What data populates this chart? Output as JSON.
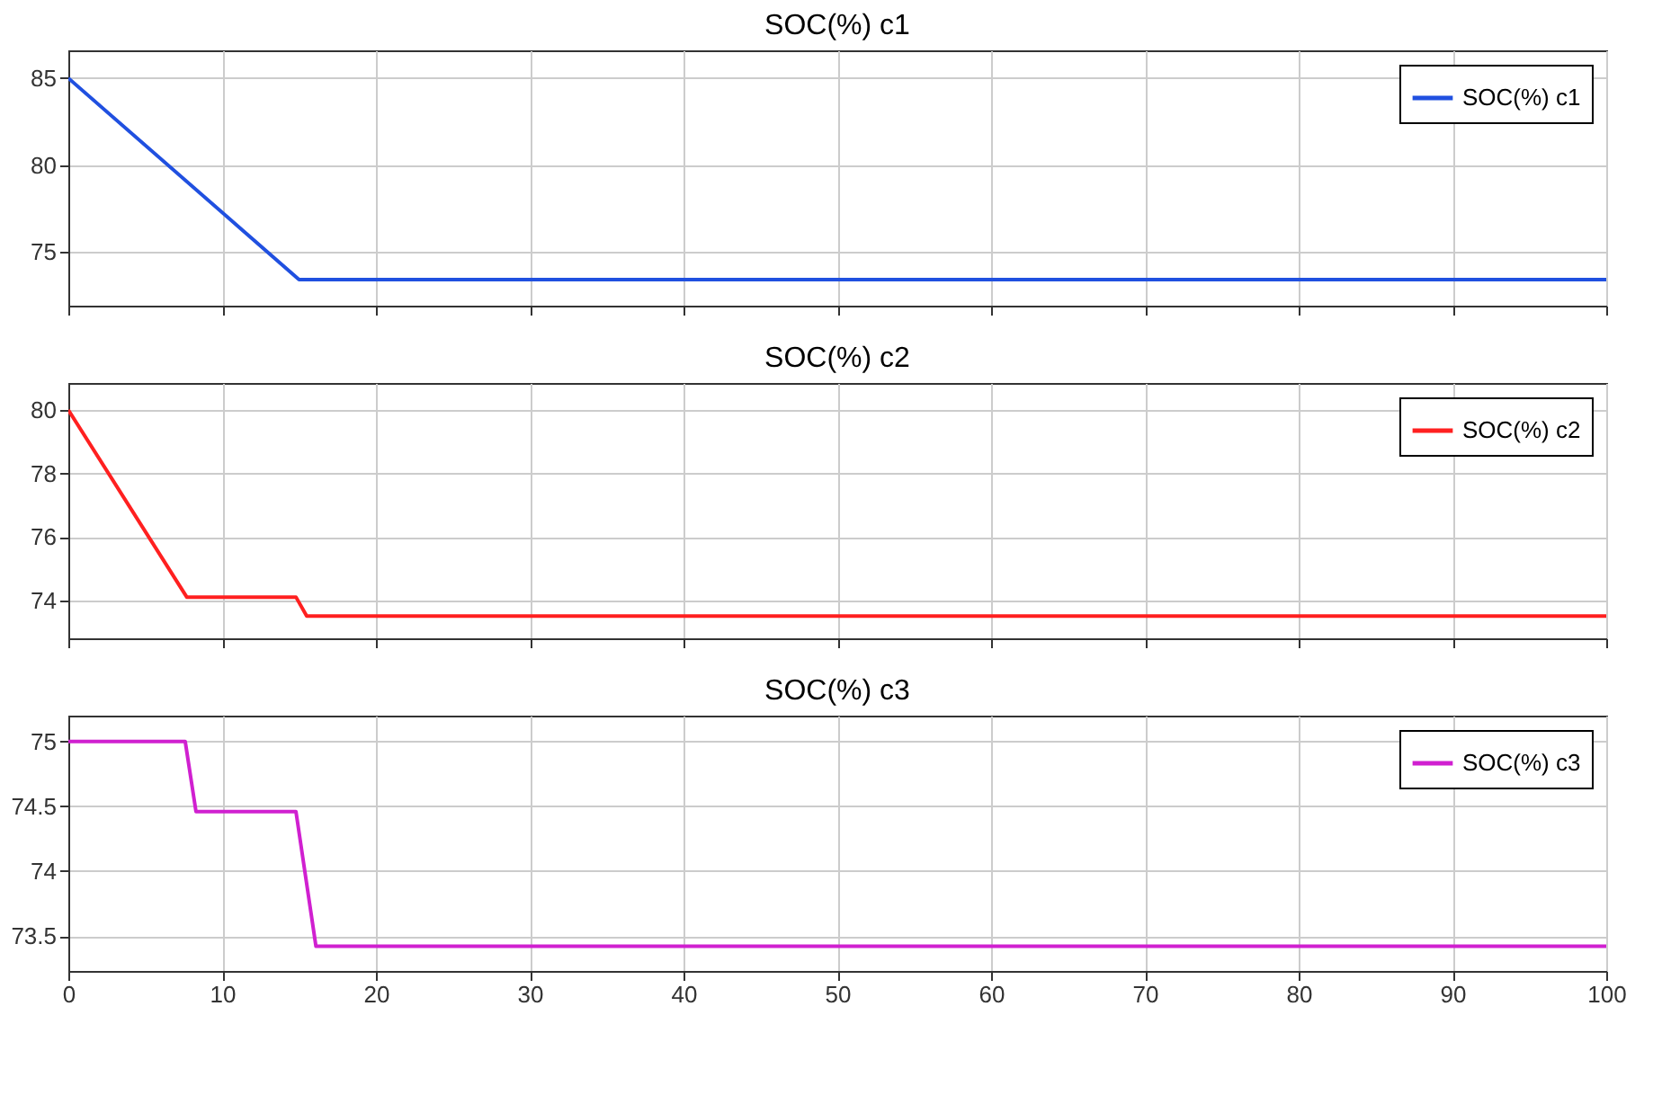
{
  "chart_data": [
    {
      "type": "line",
      "title": "SOC(%) c1",
      "xlim": [
        0,
        100
      ],
      "xticks": [
        0,
        10,
        20,
        30,
        40,
        50,
        60,
        70,
        80,
        90,
        100
      ],
      "ylim": [
        71.9,
        86.6
      ],
      "yticks": [
        75,
        80,
        85
      ],
      "grid": true,
      "legend": "top right",
      "tick_labels": "y",
      "series": [
        {
          "name": "SOC(%) c1",
          "color": "#2050e0",
          "x": [
            0,
            15,
            100
          ],
          "values": [
            85,
            73.4,
            73.4
          ]
        }
      ]
    },
    {
      "type": "line",
      "title": "SOC(%) c2",
      "xlim": [
        0,
        100
      ],
      "xticks": [
        0,
        10,
        20,
        30,
        40,
        50,
        60,
        70,
        80,
        90,
        100
      ],
      "ylim": [
        72.8,
        80.85
      ],
      "yticks": [
        74,
        76,
        78,
        80
      ],
      "grid": true,
      "legend": "top right",
      "tick_labels": "y",
      "series": [
        {
          "name": "SOC(%) c2",
          "color": "#ff2020",
          "x": [
            0,
            7.7,
            14.8,
            15.5,
            100
          ],
          "values": [
            80,
            74.1,
            74.1,
            73.5,
            73.5
          ]
        }
      ]
    },
    {
      "type": "line",
      "title": "SOC(%) c3",
      "xlim": [
        0,
        100
      ],
      "xticks": [
        0,
        10,
        20,
        30,
        40,
        50,
        60,
        70,
        80,
        90,
        100
      ],
      "ylim": [
        73.23,
        75.2
      ],
      "yticks": [
        73.5,
        74,
        74.5,
        75
      ],
      "grid": true,
      "legend": "top right",
      "series": [
        {
          "name": "SOC(%) c3",
          "color": "#d020d0",
          "x": [
            0,
            7.6,
            8.3,
            14.8,
            16.1,
            100
          ],
          "values": [
            75,
            75,
            74.46,
            74.46,
            73.42,
            73.42
          ]
        }
      ]
    }
  ]
}
